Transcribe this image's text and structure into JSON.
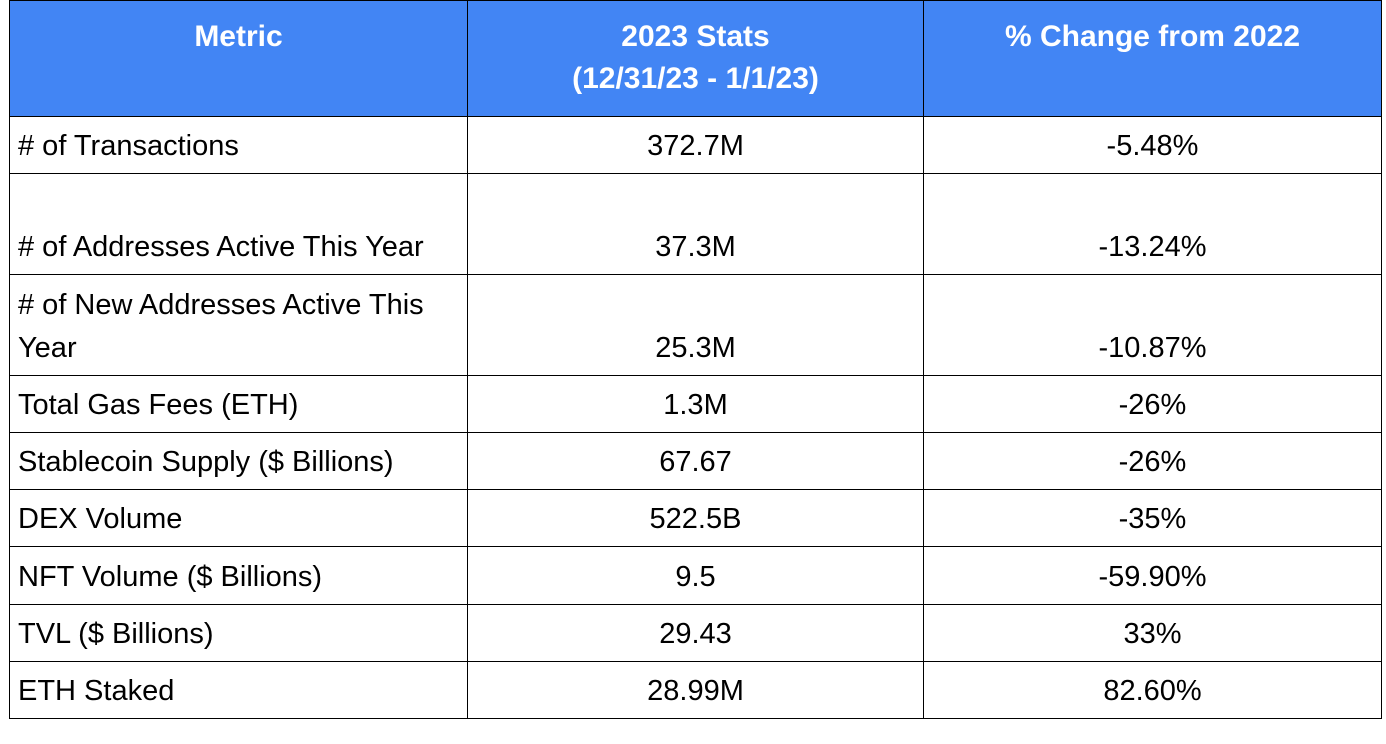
{
  "table": {
    "header_color": "#4285f4",
    "headers": {
      "metric": "Metric",
      "stats_line1": "2023 Stats",
      "stats_line2": "(12/31/23 - 1/1/23)",
      "change": "% Change from 2022"
    },
    "rows": [
      {
        "metric": "# of Transactions",
        "value": "372.7M",
        "change": "-5.48%"
      },
      {
        "metric": "# of Addresses Active This Year",
        "value": "37.3M",
        "change": "-13.24%"
      },
      {
        "metric": "# of New Addresses Active This Year",
        "value": "25.3M",
        "change": "-10.87%"
      },
      {
        "metric": "Total Gas Fees (ETH)",
        "value": "1.3M",
        "change": "-26%"
      },
      {
        "metric": "Stablecoin Supply ($ Billions)",
        "value": "67.67",
        "change": "-26%"
      },
      {
        "metric": "DEX Volume",
        "value": "522.5B",
        "change": "-35%"
      },
      {
        "metric": "NFT Volume ($ Billions)",
        "value": "9.5",
        "change": "-59.90%"
      },
      {
        "metric": "TVL ($ Billions)",
        "value": "29.43",
        "change": "33%"
      },
      {
        "metric": "ETH Staked",
        "value": "28.99M",
        "change": "82.60%"
      }
    ]
  }
}
